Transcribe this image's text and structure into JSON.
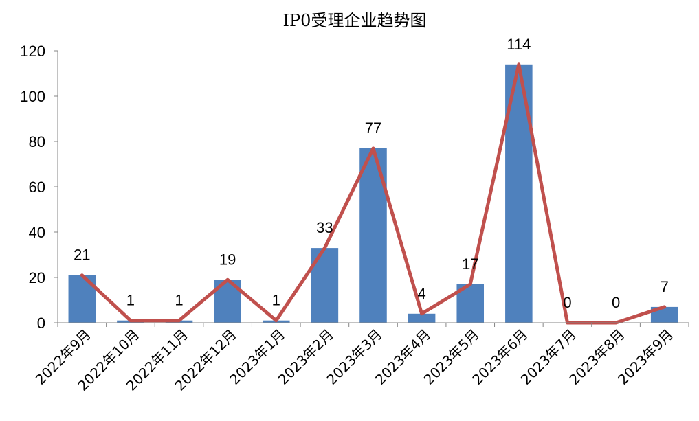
{
  "chart_data": {
    "type": "bar",
    "title": "IP0受理企业趋势图",
    "categories": [
      "2022年9月",
      "2022年10月",
      "2022年11月",
      "2022年12月",
      "2023年1月",
      "2023年2月",
      "2023年3月",
      "2023年4月",
      "2023年5月",
      "2023年6月",
      "2023年7月",
      "2023年8月",
      "2023年9月"
    ],
    "values": [
      21,
      1,
      1,
      19,
      1,
      33,
      77,
      4,
      17,
      114,
      0,
      0,
      7
    ],
    "overlay_line": true,
    "ylim": [
      0,
      120
    ],
    "yticks": [
      0,
      20,
      40,
      60,
      80,
      100,
      120
    ],
    "grid": false,
    "legend": "none",
    "colors": {
      "bar": "#4F81BD",
      "line": "#C0504D"
    }
  }
}
